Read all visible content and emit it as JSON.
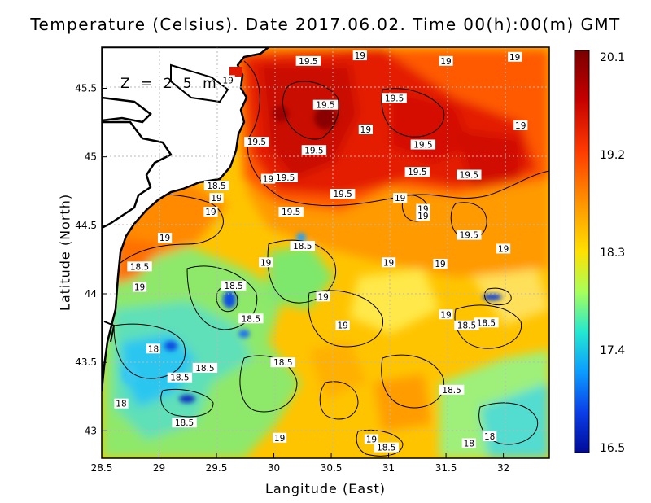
{
  "title": "Temperature (Celsius). Date 2017.06.02. Time 00(h):00(m) GMT",
  "depth_label": "Z = 2.5 m",
  "xlabel": "Langitude (East)",
  "ylabel": "Latitude (North)",
  "chart_data": {
    "type": "heatmap",
    "title": "Temperature (Celsius). Date 2017.06.02. Time 00(h):00(m) GMT",
    "xlabel": "Langitude (East)",
    "ylabel": "Latitude (North)",
    "xlim": [
      28.5,
      32.4
    ],
    "ylim": [
      42.8,
      45.8
    ],
    "x_ticks": [
      "28.5",
      "29",
      "29.5",
      "30",
      "30.5",
      "31",
      "31.5",
      "32"
    ],
    "y_ticks": [
      "43",
      "43.5",
      "44",
      "44.5",
      "45",
      "45.5"
    ],
    "colorbar": {
      "min": 16.5,
      "max": 20.1,
      "tick_labels": [
        "20.1",
        "19.2",
        "18.3",
        "17.4",
        "16.5"
      ]
    },
    "grid": true,
    "contour_labels": [
      {
        "text": "19.5",
        "lon": 30.3,
        "lat": 45.7
      },
      {
        "text": "19",
        "lon": 30.75,
        "lat": 45.74
      },
      {
        "text": "19",
        "lon": 31.5,
        "lat": 45.7
      },
      {
        "text": "19",
        "lon": 32.1,
        "lat": 45.73
      },
      {
        "text": "19",
        "lon": 29.6,
        "lat": 45.56
      },
      {
        "text": "19.5",
        "lon": 30.45,
        "lat": 45.38
      },
      {
        "text": "19.5",
        "lon": 31.05,
        "lat": 45.43
      },
      {
        "text": "19",
        "lon": 30.8,
        "lat": 45.2
      },
      {
        "text": "19",
        "lon": 32.15,
        "lat": 45.23
      },
      {
        "text": "19.5",
        "lon": 29.85,
        "lat": 45.11
      },
      {
        "text": "19.5",
        "lon": 30.35,
        "lat": 45.05
      },
      {
        "text": "19.5",
        "lon": 31.3,
        "lat": 45.09
      },
      {
        "text": "19.5",
        "lon": 31.25,
        "lat": 44.89
      },
      {
        "text": "19.5",
        "lon": 31.7,
        "lat": 44.87
      },
      {
        "text": "19.5",
        "lon": 30.1,
        "lat": 44.85
      },
      {
        "text": "19",
        "lon": 29.95,
        "lat": 44.84
      },
      {
        "text": "18.5",
        "lon": 29.5,
        "lat": 44.79
      },
      {
        "text": "19.5",
        "lon": 30.6,
        "lat": 44.73
      },
      {
        "text": "19",
        "lon": 29.5,
        "lat": 44.7
      },
      {
        "text": "19",
        "lon": 31.1,
        "lat": 44.7
      },
      {
        "text": "19",
        "lon": 31.3,
        "lat": 44.62
      },
      {
        "text": "19",
        "lon": 29.45,
        "lat": 44.6
      },
      {
        "text": "19.5",
        "lon": 30.15,
        "lat": 44.6
      },
      {
        "text": "19",
        "lon": 31.3,
        "lat": 44.57
      },
      {
        "text": "19",
        "lon": 29.05,
        "lat": 44.41
      },
      {
        "text": "19.5",
        "lon": 31.7,
        "lat": 44.43
      },
      {
        "text": "18.5",
        "lon": 30.25,
        "lat": 44.35
      },
      {
        "text": "19",
        "lon": 32.0,
        "lat": 44.33
      },
      {
        "text": "19",
        "lon": 29.93,
        "lat": 44.23
      },
      {
        "text": "19",
        "lon": 31.0,
        "lat": 44.23
      },
      {
        "text": "19",
        "lon": 31.45,
        "lat": 44.22
      },
      {
        "text": "18.5",
        "lon": 28.83,
        "lat": 44.2
      },
      {
        "text": "18.5",
        "lon": 29.65,
        "lat": 44.06
      },
      {
        "text": "19",
        "lon": 28.83,
        "lat": 44.05
      },
      {
        "text": "19",
        "lon": 30.43,
        "lat": 43.98
      },
      {
        "text": "18.5",
        "lon": 29.8,
        "lat": 43.82
      },
      {
        "text": "19",
        "lon": 31.5,
        "lat": 43.85
      },
      {
        "text": "18.5",
        "lon": 31.85,
        "lat": 43.79
      },
      {
        "text": "18.5",
        "lon": 31.68,
        "lat": 43.77
      },
      {
        "text": "19",
        "lon": 30.6,
        "lat": 43.77
      },
      {
        "text": "18",
        "lon": 28.95,
        "lat": 43.6
      },
      {
        "text": "18.5",
        "lon": 30.08,
        "lat": 43.5
      },
      {
        "text": "18.5",
        "lon": 29.4,
        "lat": 43.46
      },
      {
        "text": "18.5",
        "lon": 29.18,
        "lat": 43.39
      },
      {
        "text": "18.5",
        "lon": 31.55,
        "lat": 43.3
      },
      {
        "text": "18",
        "lon": 28.67,
        "lat": 43.2
      },
      {
        "text": "18.5",
        "lon": 29.22,
        "lat": 43.06
      },
      {
        "text": "18",
        "lon": 31.88,
        "lat": 42.96
      },
      {
        "text": "18",
        "lon": 31.7,
        "lat": 42.91
      },
      {
        "text": "19",
        "lon": 30.05,
        "lat": 42.95
      },
      {
        "text": "19",
        "lon": 30.85,
        "lat": 42.94
      },
      {
        "text": "18.5",
        "lon": 30.98,
        "lat": 42.88
      }
    ]
  },
  "colors": {
    "land": "#ffffff",
    "coastline": "#000000",
    "contour": "#000000",
    "grid": "#b9b9b9"
  }
}
